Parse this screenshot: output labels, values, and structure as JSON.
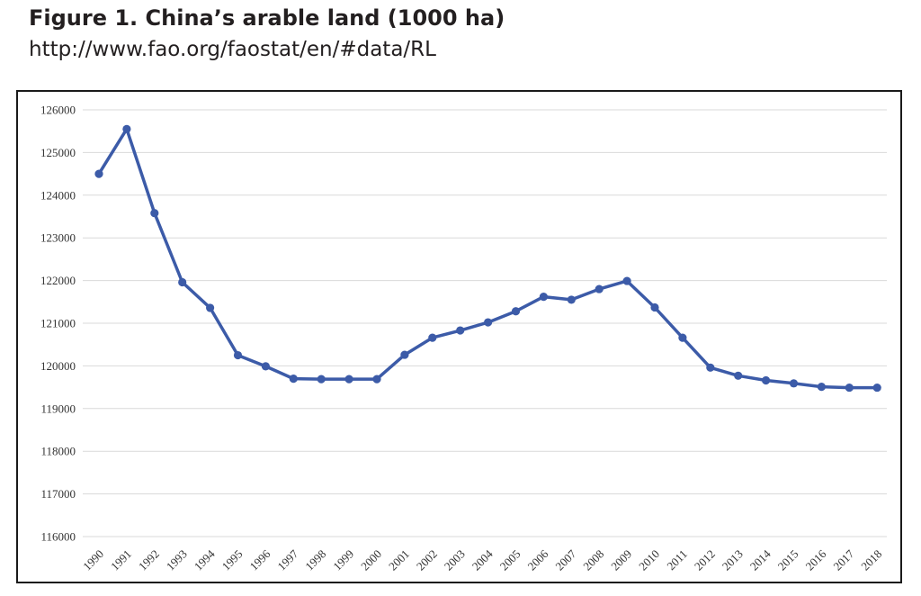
{
  "header": {
    "title": "Figure 1. China’s arable land (1000 ha)",
    "source": "http://www.fao.org/faostat/en/#data/RL"
  },
  "colors": {
    "line": "#3c5ba8",
    "grid": "#d9d9d9",
    "text": "#231f20"
  },
  "chart_data": {
    "type": "line",
    "title": "",
    "xlabel": "",
    "ylabel": "",
    "ylim": [
      116000,
      126000
    ],
    "yticks": [
      116000,
      117000,
      118000,
      119000,
      120000,
      121000,
      122000,
      123000,
      124000,
      125000,
      126000
    ],
    "grid": "horizontal",
    "legend": "none",
    "categories": [
      "1990",
      "1991",
      "1992",
      "1993",
      "1994",
      "1995",
      "1996",
      "1997",
      "1998",
      "1999",
      "2000",
      "2001",
      "2002",
      "2003",
      "2004",
      "2005",
      "2006",
      "2007",
      "2008",
      "2009",
      "2010",
      "2011",
      "2012",
      "2013",
      "2014",
      "2015",
      "2016",
      "2017",
      "2018"
    ],
    "series": [
      {
        "values": [
          124500,
          125550,
          123580,
          121960,
          121360,
          120250,
          119990,
          119700,
          119690,
          119690,
          119690,
          120260,
          120660,
          120830,
          121020,
          121280,
          121620,
          121550,
          121800,
          121990,
          121370,
          120660,
          119960,
          119770,
          119660,
          119590,
          119510,
          119490,
          119490
        ]
      }
    ]
  }
}
